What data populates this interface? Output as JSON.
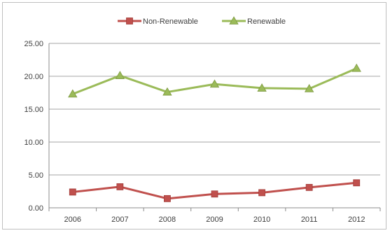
{
  "chart_data": {
    "type": "line",
    "title": "",
    "xlabel": "",
    "ylabel": "",
    "categories": [
      "2006",
      "2007",
      "2008",
      "2009",
      "2010",
      "2011",
      "2012"
    ],
    "ylim": [
      0,
      25
    ],
    "yticks": [
      "0.00",
      "5.00",
      "10.00",
      "15.00",
      "20.00",
      "25.00"
    ],
    "grid": true,
    "legend_position": "top",
    "series": [
      {
        "name": "Non-Renewable",
        "color": "#c0504d",
        "marker": "square",
        "values": [
          2.4,
          3.2,
          1.4,
          2.1,
          2.3,
          3.1,
          3.8
        ]
      },
      {
        "name": "Renewable",
        "color": "#9bbb59",
        "marker": "triangle",
        "values": [
          17.3,
          20.1,
          17.6,
          18.8,
          18.2,
          18.1,
          21.2
        ]
      }
    ]
  }
}
